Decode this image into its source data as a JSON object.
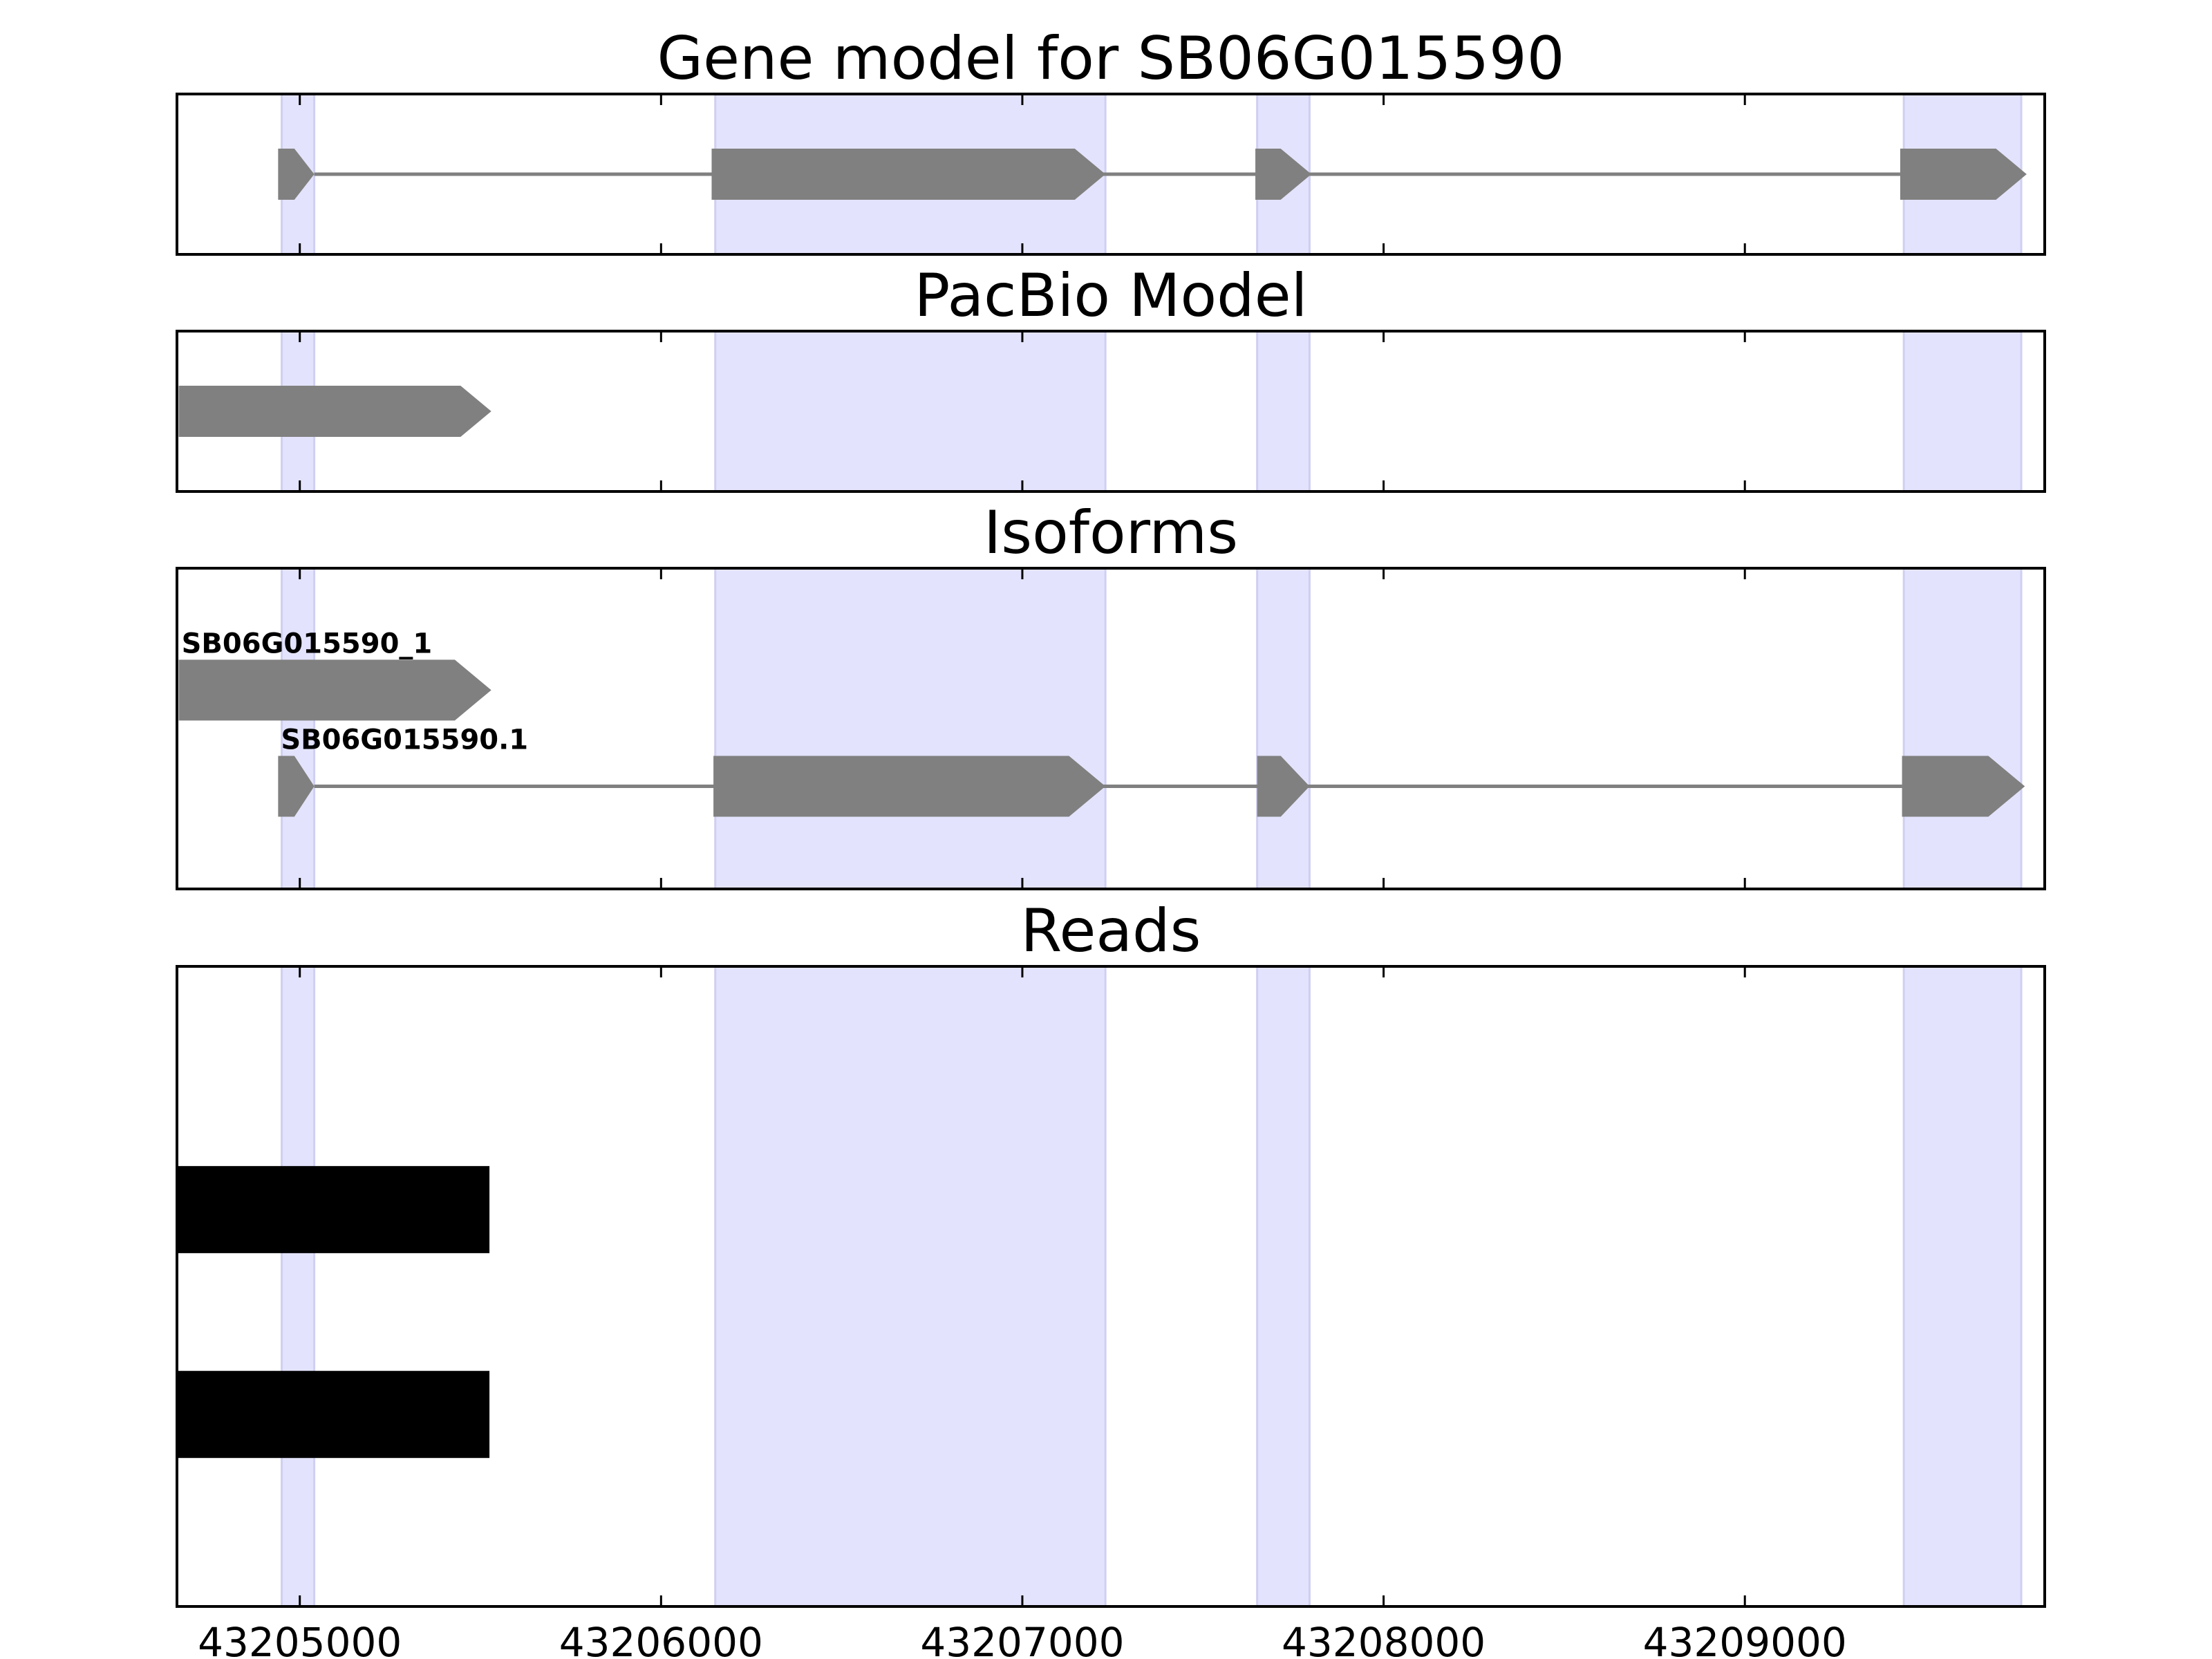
{
  "chart_data": {
    "type": "gene-track",
    "xlim": [
      43204660,
      43209830
    ],
    "x_ticks": [
      43205000,
      43206000,
      43207000,
      43208000,
      43209000
    ],
    "x_tick_labels": [
      "43205000",
      "43206000",
      "43207000",
      "43208000",
      "43209000"
    ],
    "colors": {
      "exon_band": "#e3e3fd",
      "exon_band_edge": "#cfcff2",
      "feature": "#808080",
      "read": "#000000",
      "frame": "#000000"
    },
    "exon_bands": [
      [
        43204950,
        43205040
      ],
      [
        43206150,
        43207230
      ],
      [
        43207650,
        43207795
      ],
      [
        43209440,
        43209765
      ]
    ],
    "panels": [
      {
        "id": "gene-model",
        "title": "Gene model for SB06G015590",
        "kind": "gene",
        "tracks": [
          {
            "label": "",
            "exons": [
              [
                43204940,
                43205040
              ],
              [
                43206140,
                43207230
              ],
              [
                43207645,
                43207800
              ],
              [
                43209430,
                43209780
              ]
            ]
          }
        ]
      },
      {
        "id": "pacbio-model",
        "title": "PacBio Model",
        "kind": "gene",
        "tracks": [
          {
            "label": "",
            "exons": [
              [
                43204665,
                43205530
              ]
            ]
          }
        ]
      },
      {
        "id": "isoforms",
        "title": "Isoforms",
        "kind": "gene",
        "tracks": [
          {
            "label": "SB06G015590_1",
            "exons": [
              [
                43204665,
                43205530
              ]
            ]
          },
          {
            "label": "SB06G015590.1",
            "exons": [
              [
                43204940,
                43205040
              ],
              [
                43206145,
                43207230
              ],
              [
                43207650,
                43207795
              ],
              [
                43209435,
                43209775
              ]
            ]
          }
        ]
      },
      {
        "id": "reads",
        "title": "Reads",
        "kind": "reads",
        "reads": [
          {
            "start": 43204660,
            "end": 43205525
          },
          {
            "start": 43204660,
            "end": 43205525
          }
        ]
      }
    ]
  }
}
